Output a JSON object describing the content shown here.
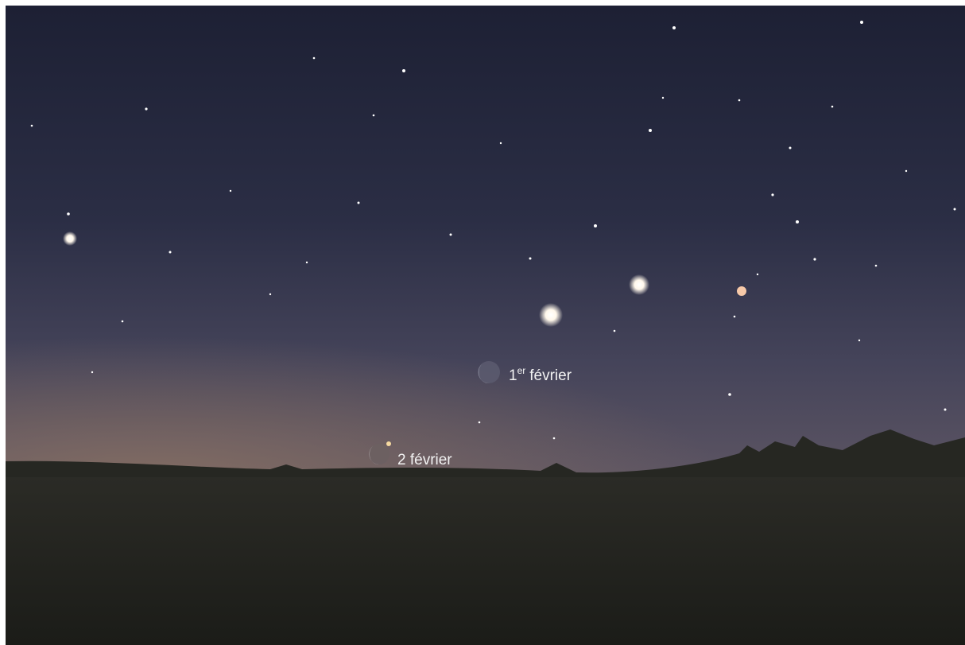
{
  "labels": [
    {
      "day": "1",
      "suffix": "er",
      "month": "février"
    },
    {
      "text": "2 février"
    }
  ]
}
